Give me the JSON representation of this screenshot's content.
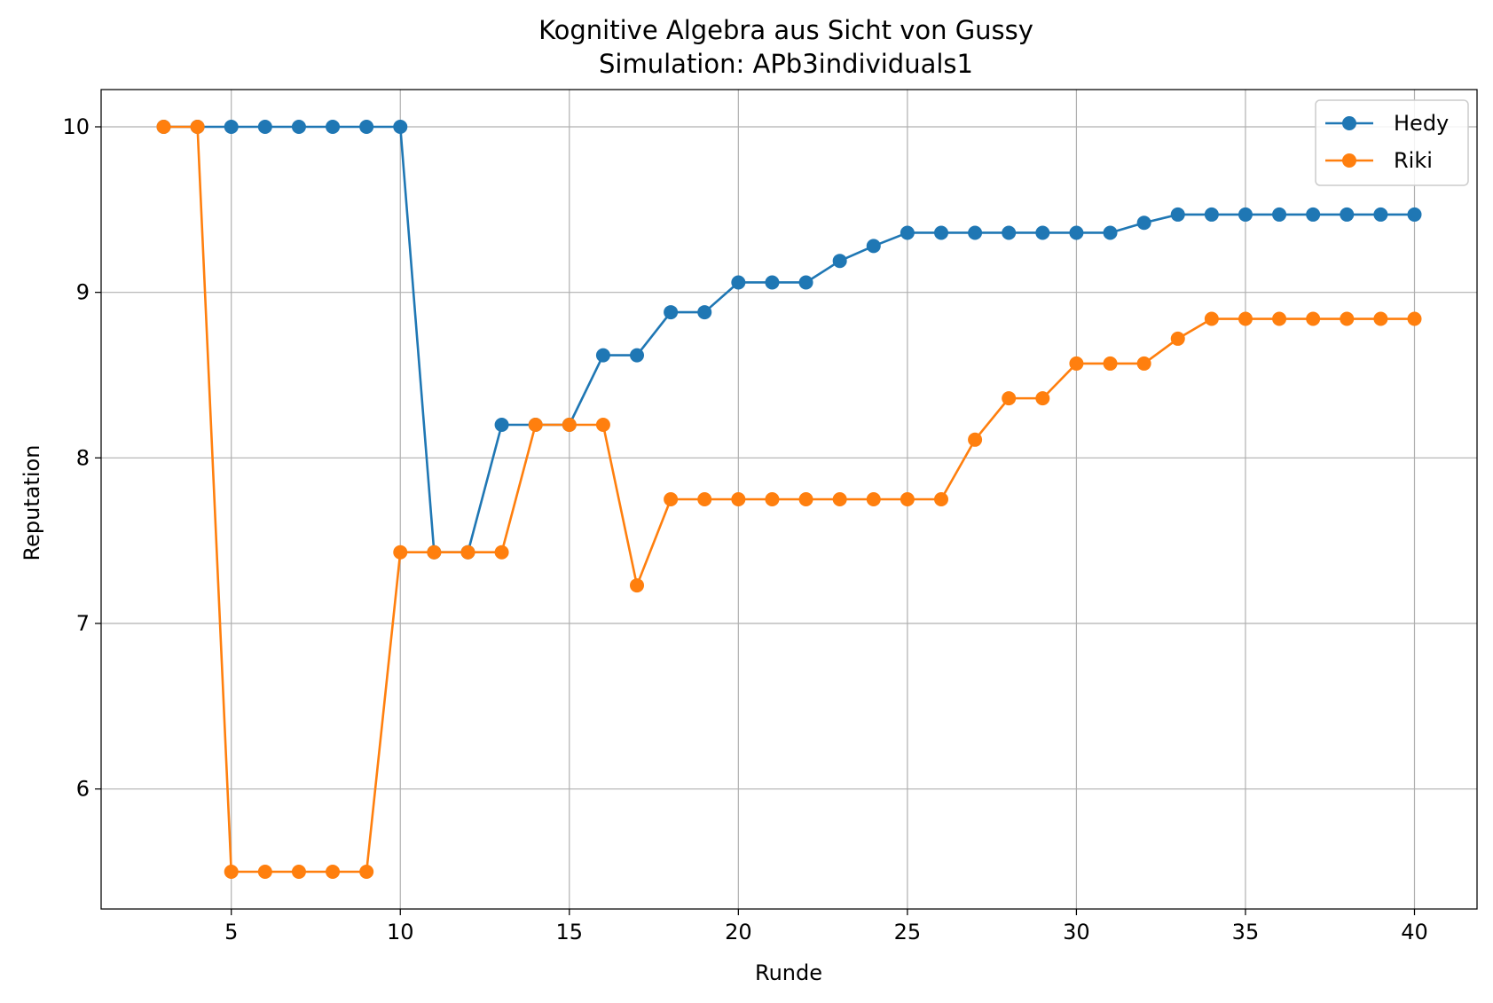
{
  "chart_data": {
    "type": "line",
    "title": "Kognitive Algebra aus Sicht von Gussy",
    "subtitle": "Simulation: APb3individuals1",
    "xlabel": "Runde",
    "ylabel": "Reputation",
    "xlim": [
      1.15,
      41.85
    ],
    "ylim": [
      5.275,
      10.225
    ],
    "xticks": [
      5,
      10,
      15,
      20,
      25,
      30,
      35,
      40
    ],
    "yticks": [
      6,
      7,
      8,
      9,
      10
    ],
    "grid": true,
    "legend": "top-right",
    "x": [
      3,
      4,
      5,
      6,
      7,
      8,
      9,
      10,
      11,
      12,
      13,
      14,
      15,
      16,
      17,
      18,
      19,
      20,
      21,
      22,
      23,
      24,
      25,
      26,
      27,
      28,
      29,
      30,
      31,
      32,
      33,
      34,
      35,
      36,
      37,
      38,
      39,
      40
    ],
    "series": [
      {
        "name": "Hedy",
        "color": "#1f77b4",
        "values": [
          10,
          10,
          10,
          10,
          10,
          10,
          10,
          10,
          7.43,
          7.43,
          8.2,
          8.2,
          8.2,
          8.62,
          8.62,
          8.88,
          8.88,
          9.06,
          9.06,
          9.06,
          9.19,
          9.28,
          9.36,
          9.36,
          9.36,
          9.36,
          9.36,
          9.36,
          9.36,
          9.42,
          9.47,
          9.47,
          9.47,
          9.47,
          9.47,
          9.47,
          9.47,
          9.47
        ]
      },
      {
        "name": "Riki",
        "color": "#ff7f0e",
        "values": [
          10,
          10,
          5.5,
          5.5,
          5.5,
          5.5,
          5.5,
          7.43,
          7.43,
          7.43,
          7.43,
          8.2,
          8.2,
          8.2,
          7.23,
          7.75,
          7.75,
          7.75,
          7.75,
          7.75,
          7.75,
          7.75,
          7.75,
          7.75,
          8.11,
          8.36,
          8.36,
          8.57,
          8.57,
          8.57,
          8.72,
          8.84,
          8.84,
          8.84,
          8.84,
          8.84,
          8.84,
          8.84
        ]
      }
    ]
  }
}
